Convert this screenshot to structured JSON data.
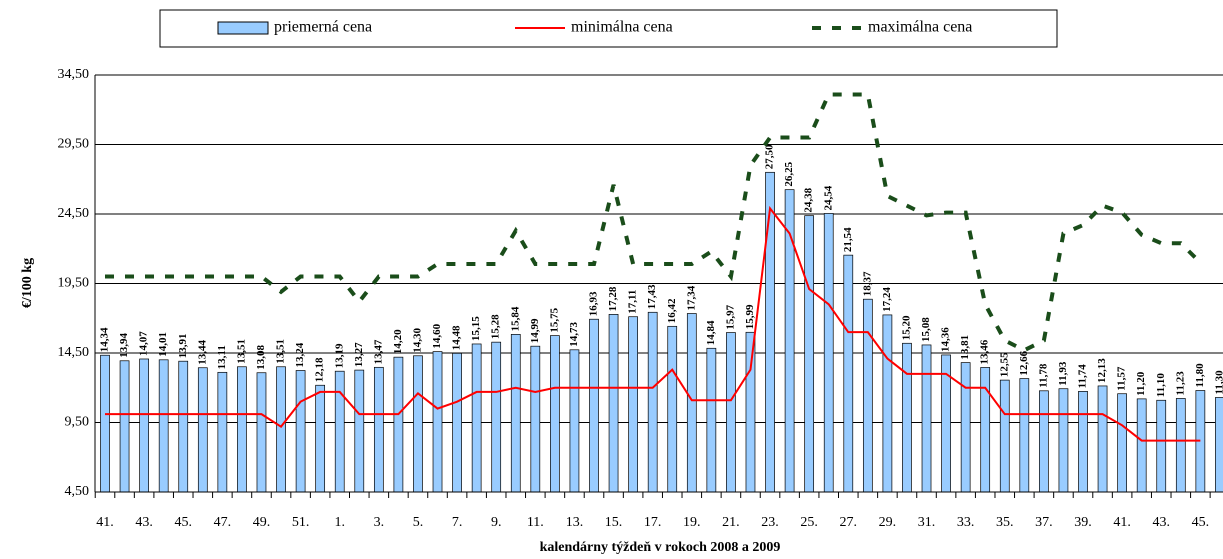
{
  "chart_data": {
    "type": "bar-line",
    "xlabel": "kalendárny týždeň v rokoch 2008 a 2009",
    "ylabel": "€/100 kg",
    "categories": [
      "41.",
      null,
      "43.",
      null,
      "45.",
      null,
      "47.",
      null,
      "49.",
      null,
      "51.",
      null,
      "1.",
      null,
      "3.",
      null,
      "5.",
      null,
      "7.",
      null,
      "9.",
      null,
      "11.",
      null,
      "13.",
      null,
      "15.",
      null,
      "17.",
      null,
      "19.",
      null,
      "21.",
      null,
      "23.",
      null,
      "25.",
      null,
      "27.",
      null,
      "29.",
      null,
      "31.",
      null,
      "33.",
      null,
      "35.",
      null,
      "37.",
      null,
      "39.",
      null,
      "41.",
      null,
      "43.",
      null,
      "45.",
      null
    ],
    "ylim": [
      4.5,
      34.5
    ],
    "yticks": [
      {
        "value": 4.5,
        "label": "4,50"
      },
      {
        "value": 9.5,
        "label": "9,50"
      },
      {
        "value": 14.5,
        "label": "14,50"
      },
      {
        "value": 19.5,
        "label": "19,50"
      },
      {
        "value": 24.5,
        "label": "24,50"
      },
      {
        "value": 29.5,
        "label": "29,50"
      },
      {
        "value": 34.5,
        "label": "34,50"
      }
    ],
    "grid": true,
    "series": [
      {
        "name": "priemerná cena",
        "kind": "bar",
        "color": "#99ccff",
        "values": [
          14.34,
          13.94,
          14.07,
          14.01,
          13.91,
          13.44,
          13.11,
          13.51,
          13.08,
          13.51,
          13.24,
          12.18,
          13.19,
          13.27,
          13.47,
          14.2,
          14.3,
          14.6,
          14.48,
          15.15,
          15.28,
          15.84,
          14.99,
          15.75,
          14.73,
          16.93,
          17.28,
          17.11,
          17.43,
          16.42,
          17.34,
          14.84,
          15.97,
          15.99,
          27.5,
          26.25,
          24.38,
          24.54,
          21.54,
          18.37,
          17.24,
          15.2,
          15.08,
          14.36,
          13.81,
          13.46,
          12.55,
          12.66,
          11.78,
          11.93,
          11.74,
          12.13,
          11.57,
          11.2,
          11.1,
          11.23,
          11.8,
          11.3
        ],
        "value_labels": [
          "14,34",
          "13,94",
          "14,07",
          "14,01",
          "13,91",
          "13,44",
          "13,11",
          "13,51",
          "13,08",
          "13,51",
          "13,24",
          "12,18",
          "13,19",
          "13,27",
          "13,47",
          "14,20",
          "14,30",
          "14,60",
          "14,48",
          "15,15",
          "15,28",
          "15,84",
          "14,99",
          "15,75",
          "14,73",
          "16,93",
          "17,28",
          "17,11",
          "17,43",
          "16,42",
          "17,34",
          "14,84",
          "15,97",
          "15,99",
          "27,50",
          "26,25",
          "24,38",
          "24,54",
          "21,54",
          "18,37",
          "17,24",
          "15,20",
          "15,08",
          "14,36",
          "13,81",
          "13,46",
          "12,55",
          "12,66",
          "11,78",
          "11,93",
          "11,74",
          "12,13",
          "11,57",
          "11,20",
          "11,10",
          "11,23",
          "11,80",
          "11,30"
        ]
      },
      {
        "name": "minimálna cena",
        "kind": "line",
        "color": "#ff0000",
        "values": [
          10.1,
          10.1,
          10.1,
          10.1,
          10.1,
          10.1,
          10.1,
          10.1,
          10.1,
          9.2,
          11.0,
          11.7,
          11.7,
          10.1,
          10.1,
          10.1,
          11.6,
          10.5,
          11.0,
          11.7,
          11.7,
          12.0,
          11.7,
          12.0,
          12.0,
          12.0,
          12.0,
          12.0,
          12.0,
          13.3,
          11.1,
          11.1,
          11.1,
          13.3,
          24.9,
          23.1,
          19.1,
          18.0,
          16.0,
          16.0,
          14.1,
          13.0,
          13.0,
          13.0,
          12.0,
          12.0,
          10.1,
          10.1,
          10.1,
          10.1,
          10.1,
          10.1,
          9.3,
          8.2,
          8.2,
          8.2,
          8.2,
          null
        ]
      },
      {
        "name": "maximálna cena",
        "kind": "dashed",
        "color": "#1a4d1a",
        "values": [
          20.0,
          20.0,
          20.0,
          20.0,
          20.0,
          20.0,
          20.0,
          20.0,
          20.0,
          18.9,
          20.0,
          20.0,
          20.0,
          18.2,
          20.0,
          20.0,
          20.0,
          20.9,
          20.9,
          20.9,
          20.9,
          23.3,
          20.9,
          20.9,
          20.9,
          20.9,
          26.6,
          20.9,
          20.9,
          20.9,
          20.9,
          21.8,
          20.0,
          28.0,
          30.0,
          30.0,
          30.0,
          33.1,
          33.1,
          33.1,
          25.8,
          25.1,
          24.4,
          24.6,
          24.6,
          18.0,
          15.4,
          14.7,
          15.4,
          23.1,
          23.7,
          25.1,
          24.6,
          23.0,
          22.4,
          22.4,
          21.0,
          null
        ]
      }
    ]
  }
}
